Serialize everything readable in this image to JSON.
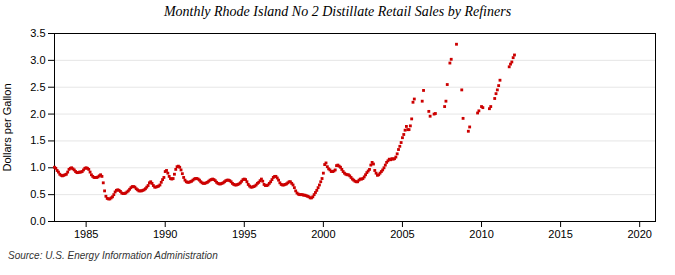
{
  "chart_data": {
    "type": "scatter",
    "title": "Monthly Rhode Island No 2 Distillate Retail Sales by Refiners",
    "ylabel": "Dollars per Gallon",
    "caption": "Source: U.S. Energy Information Administration",
    "color": "#cc0000",
    "marker": "square",
    "grid": "y",
    "xlim": [
      1983,
      2021
    ],
    "ylim": [
      0.0,
      3.5
    ],
    "xticks": [
      1985,
      1990,
      1995,
      2000,
      2005,
      2010,
      2015,
      2020
    ],
    "yticks": [
      {
        "value": 0,
        "label": "0.0"
      },
      0.5,
      {
        "value": 1,
        "label": "1.0"
      },
      1.5,
      {
        "value": 2,
        "label": "2.0"
      },
      2.5,
      {
        "value": 3,
        "label": "3.0"
      },
      3.5
    ],
    "x": [
      1983,
      1983.0833333333333,
      1983.1666666666667,
      1983.25,
      1983.3333333333333,
      1983.4166666666667,
      1983.5,
      1983.5833333333333,
      1983.6666666666667,
      1983.75,
      1983.8333333333333,
      1983.9166666666667,
      1984,
      1984.0833333333333,
      1984.1666666666667,
      1984.25,
      1984.3333333333333,
      1984.4166666666667,
      1984.5,
      1984.5833333333333,
      1984.6666666666667,
      1984.75,
      1984.8333333333333,
      1984.9166666666667,
      1985,
      1985.0833333333333,
      1985.1666666666667,
      1985.25,
      1985.3333333333333,
      1985.4166666666667,
      1985.5,
      1985.5833333333333,
      1985.6666666666667,
      1985.75,
      1985.8333333333333,
      1985.9166666666667,
      1986,
      1986.0833333333333,
      1986.1666666666667,
      1986.25,
      1986.3333333333333,
      1986.4166666666667,
      1986.5,
      1986.5833333333333,
      1986.6666666666667,
      1986.75,
      1986.8333333333333,
      1986.9166666666667,
      1987,
      1987.0833333333333,
      1987.1666666666667,
      1987.25,
      1987.3333333333333,
      1987.4166666666667,
      1987.5,
      1987.5833333333333,
      1987.6666666666667,
      1987.75,
      1987.8333333333333,
      1987.9166666666667,
      1988,
      1988.0833333333333,
      1988.1666666666667,
      1988.25,
      1988.3333333333333,
      1988.4166666666667,
      1988.5,
      1988.5833333333333,
      1988.6666666666667,
      1988.75,
      1988.8333333333333,
      1988.9166666666667,
      1989,
      1989.0833333333333,
      1989.1666666666667,
      1989.25,
      1989.3333333333333,
      1989.4166666666667,
      1989.5,
      1989.5833333333333,
      1989.6666666666667,
      1989.75,
      1989.8333333333333,
      1989.9166666666667,
      1990,
      1990.0833333333333,
      1990.1666666666667,
      1990.25,
      1990.3333333333333,
      1990.4166666666667,
      1990.5,
      1990.5833333333333,
      1990.6666666666667,
      1990.75,
      1990.8333333333333,
      1990.9166666666667,
      1991,
      1991.0833333333333,
      1991.1666666666667,
      1991.25,
      1991.3333333333333,
      1991.4166666666667,
      1991.5,
      1991.5833333333333,
      1991.6666666666667,
      1991.75,
      1991.8333333333333,
      1991.9166666666667,
      1992,
      1992.0833333333333,
      1992.1666666666667,
      1992.25,
      1992.3333333333333,
      1992.4166666666667,
      1992.5,
      1992.5833333333333,
      1992.6666666666667,
      1992.75,
      1992.8333333333333,
      1992.9166666666667,
      1993,
      1993.0833333333333,
      1993.1666666666667,
      1993.25,
      1993.3333333333333,
      1993.4166666666667,
      1993.5,
      1993.5833333333333,
      1993.6666666666667,
      1993.75,
      1993.8333333333333,
      1993.9166666666667,
      1994,
      1994.0833333333333,
      1994.1666666666667,
      1994.25,
      1994.3333333333333,
      1994.4166666666667,
      1994.5,
      1994.5833333333333,
      1994.6666666666667,
      1994.75,
      1994.8333333333333,
      1994.9166666666667,
      1995,
      1995.0833333333333,
      1995.1666666666667,
      1995.25,
      1995.3333333333333,
      1995.4166666666667,
      1995.5,
      1995.5833333333333,
      1995.6666666666667,
      1995.75,
      1995.8333333333333,
      1995.9166666666667,
      1996,
      1996.0833333333333,
      1996.1666666666667,
      1996.25,
      1996.3333333333333,
      1996.4166666666667,
      1996.5,
      1996.5833333333333,
      1996.6666666666667,
      1996.75,
      1996.8333333333333,
      1996.9166666666667,
      1997,
      1997.0833333333333,
      1997.1666666666667,
      1997.25,
      1997.3333333333333,
      1997.4166666666667,
      1997.5,
      1997.5833333333333,
      1997.6666666666667,
      1997.75,
      1997.8333333333333,
      1997.9166666666667,
      1998,
      1998.0833333333333,
      1998.1666666666667,
      1998.25,
      1998.3333333333333,
      1998.4166666666667,
      1998.5,
      1998.5833333333333,
      1998.6666666666667,
      1998.75,
      1998.8333333333333,
      1998.9166666666667,
      1999,
      1999.0833333333333,
      1999.1666666666667,
      1999.25,
      1999.3333333333333,
      1999.4166666666667,
      1999.5,
      1999.5833333333333,
      1999.6666666666667,
      1999.75,
      1999.8333333333333,
      1999.9166666666667,
      2000,
      2000.0833333333333,
      2000.1666666666667,
      2000.25,
      2000.3333333333333,
      2000.4166666666667,
      2000.5,
      2000.5833333333333,
      2000.6666666666667,
      2000.75,
      2000.8333333333333,
      2000.9166666666667,
      2001,
      2001.0833333333333,
      2001.1666666666667,
      2001.25,
      2001.3333333333333,
      2001.4166666666667,
      2001.5,
      2001.5833333333333,
      2001.6666666666667,
      2001.75,
      2001.8333333333333,
      2001.9166666666667,
      2002,
      2002.0833333333333,
      2002.1666666666667,
      2002.25,
      2002.3333333333333,
      2002.4166666666667,
      2002.5,
      2002.5833333333333,
      2002.6666666666667,
      2002.75,
      2002.8333333333333,
      2002.9166666666667,
      2003,
      2003.0833333333333,
      2003.1666666666667,
      2003.25,
      2003.3333333333333,
      2003.4166666666667,
      2003.5,
      2003.5833333333333,
      2003.6666666666667,
      2003.75,
      2003.8333333333333,
      2003.9166666666667,
      2004,
      2004.0833333333333,
      2004.1666666666667,
      2004.25,
      2004.3333333333333,
      2004.4166666666667,
      2004.5,
      2004.5833333333333,
      2004.6666666666667,
      2004.75,
      2004.8333333333333,
      2004.9166666666667,
      2005,
      2005.0833333333333,
      2005.1666666666667,
      2005.25,
      2005.3333333333333,
      2005.4166666666667,
      2005.5,
      2005.5833333333333,
      2005.6666666666667,
      2005.75,
      2006.25,
      2006.3333333333333,
      2006.6666666666667,
      2006.75,
      2007,
      2007.0833333333333,
      2007.6666666666667,
      2007.75,
      2007.8333333333333,
      2008,
      2008.0833333333333,
      2008.4166666666667,
      2008.75,
      2008.8333333333333,
      2009.1666666666667,
      2009.25,
      2009.75,
      2009.8333333333333,
      2010,
      2010.0833333333333,
      2010.5,
      2010.5833333333333,
      2010.8333333333333,
      2010.9166666666667,
      2011,
      2011.0833333333333,
      2011.1666666666667,
      2011.75,
      2011.8333333333333,
      2011.9166666666667,
      2012,
      2012.0833333333333
    ],
    "values": [
      1.01,
      0.99,
      0.95,
      0.92,
      0.88,
      0.86,
      0.85,
      0.86,
      0.87,
      0.88,
      0.92,
      0.97,
      0.99,
      1.0,
      0.98,
      0.96,
      0.93,
      0.91,
      0.91,
      0.92,
      0.92,
      0.93,
      0.96,
      0.99,
      1.0,
      0.99,
      0.97,
      0.92,
      0.87,
      0.84,
      0.82,
      0.82,
      0.82,
      0.83,
      0.85,
      0.87,
      0.84,
      0.72,
      0.57,
      0.47,
      0.43,
      0.42,
      0.42,
      0.44,
      0.46,
      0.5,
      0.55,
      0.58,
      0.59,
      0.58,
      0.56,
      0.53,
      0.52,
      0.52,
      0.53,
      0.55,
      0.57,
      0.6,
      0.63,
      0.65,
      0.65,
      0.64,
      0.61,
      0.59,
      0.57,
      0.57,
      0.57,
      0.58,
      0.59,
      0.61,
      0.64,
      0.67,
      0.72,
      0.74,
      0.71,
      0.67,
      0.64,
      0.64,
      0.65,
      0.66,
      0.68,
      0.73,
      0.78,
      0.82,
      0.93,
      0.95,
      0.9,
      0.84,
      0.8,
      0.79,
      0.8,
      0.88,
      0.97,
      1.02,
      1.03,
      1.01,
      0.96,
      0.89,
      0.82,
      0.77,
      0.74,
      0.73,
      0.73,
      0.74,
      0.75,
      0.77,
      0.79,
      0.8,
      0.8,
      0.79,
      0.77,
      0.74,
      0.72,
      0.71,
      0.71,
      0.72,
      0.73,
      0.75,
      0.77,
      0.78,
      0.79,
      0.78,
      0.76,
      0.73,
      0.71,
      0.7,
      0.7,
      0.71,
      0.72,
      0.74,
      0.76,
      0.77,
      0.77,
      0.76,
      0.74,
      0.71,
      0.69,
      0.68,
      0.68,
      0.69,
      0.7,
      0.72,
      0.75,
      0.78,
      0.79,
      0.78,
      0.74,
      0.69,
      0.66,
      0.64,
      0.64,
      0.65,
      0.66,
      0.68,
      0.71,
      0.73,
      0.76,
      0.79,
      0.75,
      0.69,
      0.67,
      0.67,
      0.68,
      0.71,
      0.74,
      0.78,
      0.82,
      0.84,
      0.84,
      0.81,
      0.77,
      0.72,
      0.69,
      0.68,
      0.68,
      0.69,
      0.7,
      0.72,
      0.74,
      0.74,
      0.71,
      0.68,
      0.63,
      0.57,
      0.53,
      0.51,
      0.5,
      0.5,
      0.5,
      0.49,
      0.49,
      0.48,
      0.47,
      0.46,
      0.44,
      0.44,
      0.46,
      0.5,
      0.54,
      0.58,
      0.63,
      0.68,
      0.74,
      0.8,
      0.9,
      1.06,
      1.09,
      1.02,
      0.98,
      0.96,
      0.93,
      0.93,
      0.94,
      0.96,
      1.04,
      1.05,
      1.03,
      1.01,
      0.97,
      0.93,
      0.9,
      0.88,
      0.87,
      0.87,
      0.85,
      0.82,
      0.79,
      0.77,
      0.75,
      0.74,
      0.74,
      0.77,
      0.79,
      0.79,
      0.8,
      0.83,
      0.87,
      0.91,
      0.94,
      0.97,
      1.05,
      1.1,
      1.07,
      0.95,
      0.9,
      0.86,
      0.87,
      0.9,
      0.93,
      0.96,
      1.0,
      1.05,
      1.1,
      1.13,
      1.16,
      1.15,
      1.17,
      1.16,
      1.17,
      1.2,
      1.26,
      1.34,
      1.4,
      1.47,
      1.56,
      1.62,
      1.7,
      1.77,
      1.71,
      1.71,
      1.78,
      1.91,
      2.22,
      2.28,
      2.24,
      2.44,
      2.05,
      1.96,
      2.0,
      2.01,
      2.14,
      2.24,
      2.55,
      2.95,
      3.02,
      3.3,
      2.45,
      1.92,
      1.68,
      1.76,
      2.02,
      2.06,
      2.14,
      2.12,
      2.1,
      2.14,
      2.29,
      2.38,
      2.45,
      2.53,
      2.63,
      2.88,
      2.93,
      2.97,
      3.05,
      3.1
    ]
  }
}
